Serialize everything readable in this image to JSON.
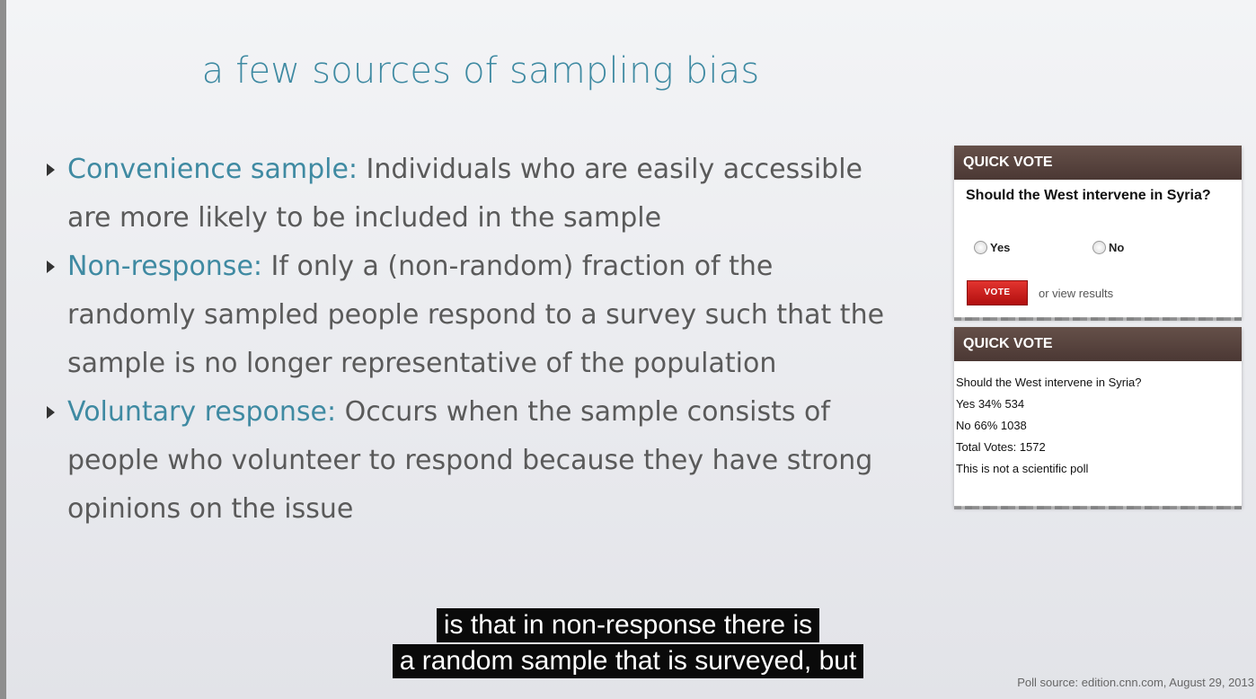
{
  "slide": {
    "title": "a few sources of sampling bias",
    "bullets": [
      {
        "term": "Convenience sample:",
        "line1": " Individuals who are easily accessible",
        "line2": "are more likely to be included in the sample",
        "line3": ""
      },
      {
        "term": "Non-response:",
        "line1": " If only a (non-random) fraction of the",
        "line2": "randomly sampled people respond to a survey such that the",
        "line3": "sample is no longer representative of the population"
      },
      {
        "term": "Voluntary response:",
        "line1": " Occurs when the sample consists of",
        "line2": "people who volunteer to respond because they have strong",
        "line3": "opinions on the issue"
      }
    ],
    "source": "Poll source: edition.cnn.com, August 29, 2013"
  },
  "poll_form": {
    "header": "QUICK VOTE",
    "question": "Should the West intervene in Syria?",
    "option_yes": "Yes",
    "option_no": "No",
    "vote_label": "VOTE",
    "view_results": "or view results"
  },
  "poll_results": {
    "header": "QUICK VOTE",
    "question": "Should the West intervene in Syria?",
    "yes_line": "Yes 34%  534",
    "no_line": "No  66%  1038",
    "total": "Total Votes: 1572",
    "disclaimer": "This is not a scientific poll"
  },
  "subtitles": {
    "line1": "is that in non-response there is",
    "line2": "a random sample that is surveyed, but"
  }
}
